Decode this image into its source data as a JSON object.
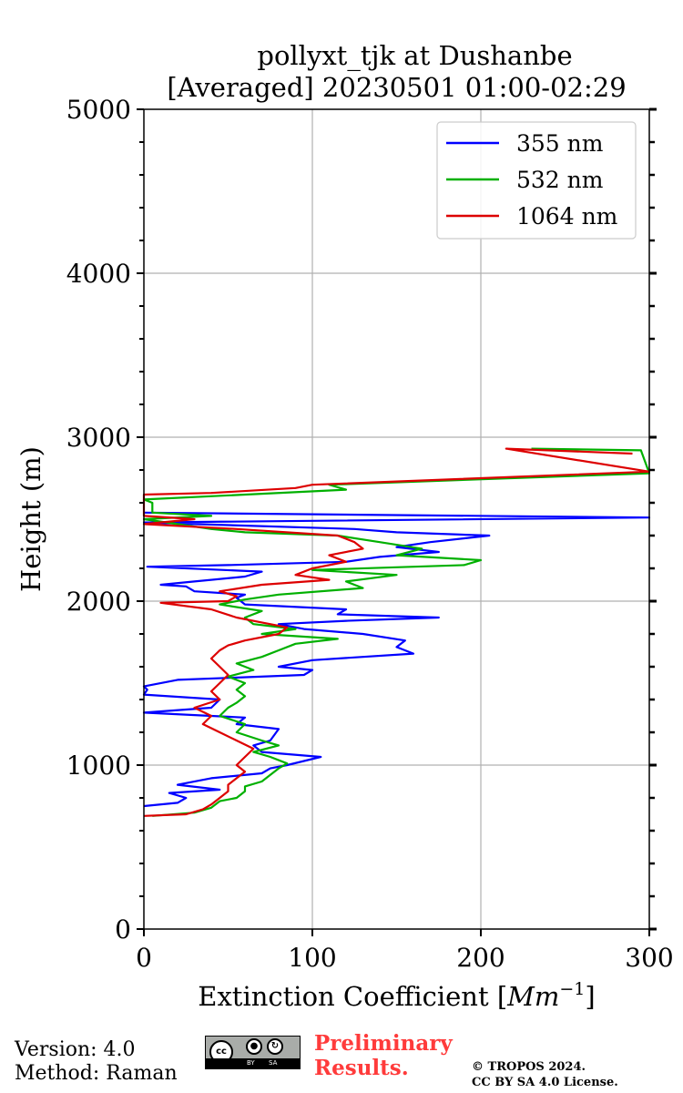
{
  "chart_data": {
    "type": "line",
    "title_line1": "pollyxt_tjk at Dushanbe",
    "title_line2": "[Averaged] 20230501 01:00-02:29",
    "xlabel": "Extinction Coefficient [",
    "xlabel_unit": "Mm",
    "xlabel_exp": "−1",
    "xlabel_close": "]",
    "ylabel": "Height (m)",
    "xlim": [
      0,
      300
    ],
    "ylim": [
      0,
      5000
    ],
    "x_ticks": [
      0,
      100,
      200,
      300
    ],
    "y_ticks": [
      0,
      1000,
      2000,
      3000,
      4000,
      5000
    ],
    "y_minor_step": 200,
    "grid": true,
    "legend_position": "top-right",
    "series": [
      {
        "name": "355 nm",
        "color": "#0000ff",
        "points": [
          [
            0,
            750
          ],
          [
            20,
            770
          ],
          [
            25,
            800
          ],
          [
            15,
            830
          ],
          [
            45,
            850
          ],
          [
            20,
            880
          ],
          [
            40,
            920
          ],
          [
            70,
            950
          ],
          [
            75,
            980
          ],
          [
            85,
            1000
          ],
          [
            105,
            1050
          ],
          [
            70,
            1080
          ],
          [
            65,
            1120
          ],
          [
            75,
            1150
          ],
          [
            80,
            1220
          ],
          [
            55,
            1250
          ],
          [
            60,
            1290
          ],
          [
            0,
            1320
          ],
          [
            40,
            1350
          ],
          [
            45,
            1400
          ],
          [
            0,
            1430
          ],
          [
            2,
            1460
          ],
          [
            0,
            1480
          ],
          [
            20,
            1520
          ],
          [
            95,
            1550
          ],
          [
            100,
            1580
          ],
          [
            80,
            1600
          ],
          [
            100,
            1640
          ],
          [
            160,
            1680
          ],
          [
            150,
            1720
          ],
          [
            155,
            1760
          ],
          [
            130,
            1800
          ],
          [
            95,
            1830
          ],
          [
            80,
            1860
          ],
          [
            120,
            1880
          ],
          [
            175,
            1900
          ],
          [
            115,
            1920
          ],
          [
            120,
            1950
          ],
          [
            60,
            1980
          ],
          [
            55,
            2020
          ],
          [
            60,
            2040
          ],
          [
            30,
            2060
          ],
          [
            25,
            2090
          ],
          [
            10,
            2100
          ],
          [
            30,
            2120
          ],
          [
            60,
            2150
          ],
          [
            70,
            2180
          ],
          [
            2,
            2210
          ],
          [
            50,
            2220
          ],
          [
            120,
            2240
          ],
          [
            140,
            2270
          ],
          [
            175,
            2300
          ],
          [
            150,
            2330
          ],
          [
            170,
            2360
          ],
          [
            205,
            2400
          ],
          [
            150,
            2420
          ],
          [
            125,
            2440
          ],
          [
            0,
            2480
          ],
          [
            300,
            2510
          ],
          [
            0,
            2540
          ]
        ]
      },
      {
        "name": "532 nm",
        "color": "#00b000",
        "points": [
          [
            5,
            690
          ],
          [
            30,
            710
          ],
          [
            40,
            740
          ],
          [
            45,
            780
          ],
          [
            55,
            800
          ],
          [
            60,
            840
          ],
          [
            60,
            870
          ],
          [
            70,
            900
          ],
          [
            75,
            940
          ],
          [
            80,
            980
          ],
          [
            85,
            1010
          ],
          [
            75,
            1050
          ],
          [
            65,
            1080
          ],
          [
            80,
            1120
          ],
          [
            70,
            1150
          ],
          [
            55,
            1200
          ],
          [
            60,
            1250
          ],
          [
            45,
            1300
          ],
          [
            50,
            1350
          ],
          [
            55,
            1380
          ],
          [
            60,
            1420
          ],
          [
            55,
            1460
          ],
          [
            60,
            1500
          ],
          [
            50,
            1540
          ],
          [
            65,
            1580
          ],
          [
            55,
            1620
          ],
          [
            70,
            1660
          ],
          [
            80,
            1700
          ],
          [
            90,
            1740
          ],
          [
            115,
            1770
          ],
          [
            70,
            1800
          ],
          [
            90,
            1830
          ],
          [
            65,
            1860
          ],
          [
            60,
            1900
          ],
          [
            70,
            1940
          ],
          [
            45,
            1980
          ],
          [
            60,
            2010
          ],
          [
            80,
            2040
          ],
          [
            130,
            2080
          ],
          [
            120,
            2120
          ],
          [
            150,
            2160
          ],
          [
            100,
            2190
          ],
          [
            190,
            2220
          ],
          [
            200,
            2250
          ],
          [
            150,
            2280
          ],
          [
            165,
            2320
          ],
          [
            140,
            2360
          ],
          [
            115,
            2400
          ],
          [
            60,
            2420
          ],
          [
            40,
            2440
          ],
          [
            20,
            2470
          ],
          [
            0,
            2500
          ],
          [
            40,
            2520
          ],
          [
            5,
            2540
          ],
          [
            5,
            2600
          ],
          [
            0,
            2620
          ],
          [
            120,
            2680
          ],
          [
            110,
            2710
          ],
          [
            300,
            2780
          ],
          [
            295,
            2920
          ],
          [
            230,
            2930
          ]
        ]
      },
      {
        "name": "1064 nm",
        "color": "#dd0000",
        "points": [
          [
            0,
            690
          ],
          [
            25,
            700
          ],
          [
            35,
            730
          ],
          [
            40,
            760
          ],
          [
            45,
            800
          ],
          [
            50,
            840
          ],
          [
            50,
            880
          ],
          [
            55,
            920
          ],
          [
            60,
            960
          ],
          [
            55,
            1000
          ],
          [
            60,
            1050
          ],
          [
            65,
            1100
          ],
          [
            55,
            1150
          ],
          [
            45,
            1200
          ],
          [
            35,
            1250
          ],
          [
            40,
            1300
          ],
          [
            30,
            1350
          ],
          [
            45,
            1400
          ],
          [
            40,
            1450
          ],
          [
            45,
            1500
          ],
          [
            50,
            1550
          ],
          [
            45,
            1600
          ],
          [
            40,
            1650
          ],
          [
            45,
            1700
          ],
          [
            50,
            1730
          ],
          [
            60,
            1760
          ],
          [
            80,
            1800
          ],
          [
            85,
            1840
          ],
          [
            70,
            1870
          ],
          [
            55,
            1900
          ],
          [
            40,
            1950
          ],
          [
            10,
            1990
          ],
          [
            50,
            2000
          ],
          [
            55,
            2030
          ],
          [
            45,
            2060
          ],
          [
            70,
            2100
          ],
          [
            110,
            2130
          ],
          [
            90,
            2160
          ],
          [
            100,
            2200
          ],
          [
            120,
            2240
          ],
          [
            110,
            2280
          ],
          [
            130,
            2320
          ],
          [
            125,
            2360
          ],
          [
            115,
            2400
          ],
          [
            55,
            2440
          ],
          [
            0,
            2470
          ],
          [
            30,
            2500
          ],
          [
            0,
            2520
          ],
          [
            0,
            2650
          ],
          [
            40,
            2660
          ],
          [
            90,
            2690
          ],
          [
            100,
            2710
          ],
          [
            300,
            2790
          ],
          [
            215,
            2930
          ],
          [
            290,
            2900
          ]
        ]
      }
    ]
  },
  "footer": {
    "version": "Version: 4.0",
    "method": "Method: Raman",
    "preliminary_line1": "Preliminary",
    "preliminary_line2": "Results.",
    "copyright_line1": "© TROPOS 2024.",
    "copyright_line2": "CC BY SA 4.0 License.",
    "license_badge": {
      "cc": "cc",
      "by_icon": "person-icon",
      "sa_icon": "share-alike-icon",
      "by": "BY",
      "sa": "SA"
    }
  }
}
